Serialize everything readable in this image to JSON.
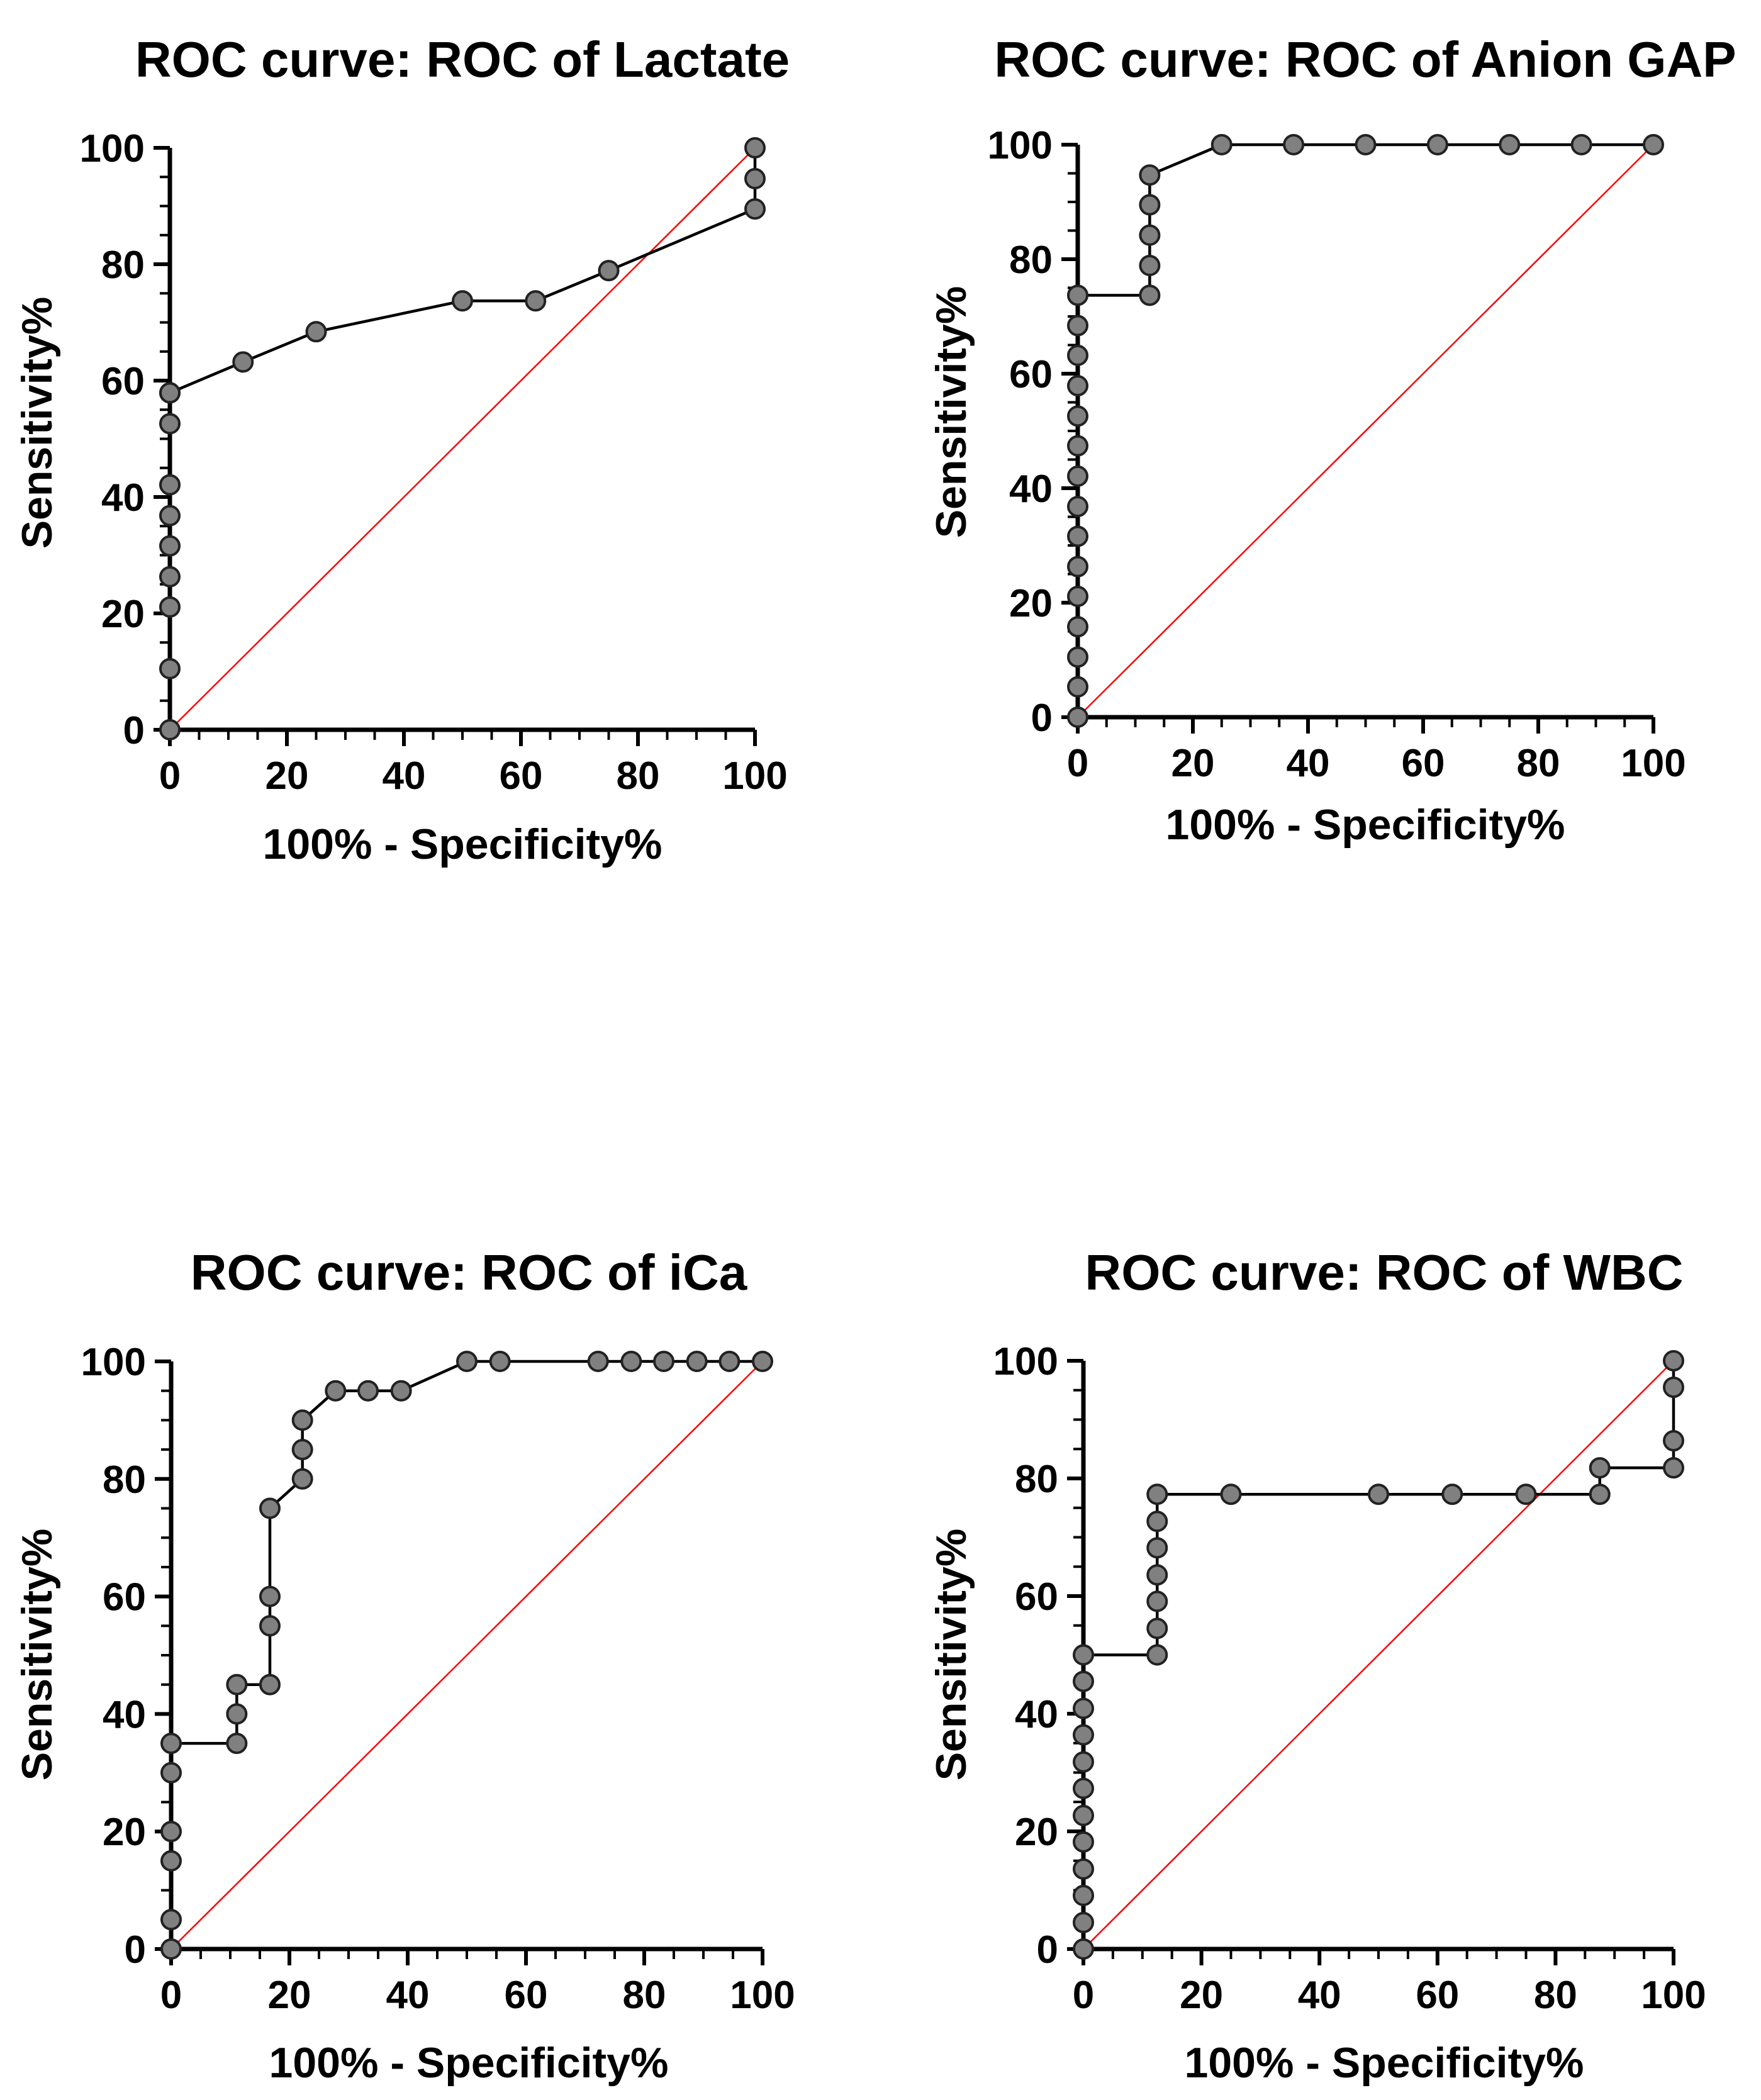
{
  "chart_data": [
    {
      "type": "line",
      "title": "ROC curve: ROC of Lactate",
      "xlabel": "100% - Specificity%",
      "ylabel": "Sensitivity%",
      "xlim": [
        0,
        100
      ],
      "ylim": [
        0,
        100
      ],
      "xticks": [
        "0",
        "20",
        "40",
        "60",
        "80",
        "100"
      ],
      "yticks": [
        "0",
        "20",
        "40",
        "60",
        "80",
        "100"
      ],
      "reference_line": {
        "color": "#ff0000",
        "from": [
          0,
          0
        ],
        "to": [
          100,
          100
        ]
      },
      "marker_color": "#808080",
      "line_color": "#000000",
      "x": [
        0,
        0,
        0,
        0,
        0,
        0,
        0,
        0,
        0,
        0,
        12.5,
        25,
        50,
        62.5,
        75,
        100,
        100,
        100
      ],
      "y": [
        0,
        10.5,
        21.1,
        26.3,
        31.6,
        36.8,
        42.1,
        52.6,
        57.9,
        57.9,
        63.2,
        68.4,
        73.7,
        73.7,
        78.9,
        89.5,
        94.7,
        100
      ]
    },
    {
      "type": "line",
      "title": "ROC curve: ROC of Anion GAP",
      "xlabel": "100% - Specificity%",
      "ylabel": "Sensitivity%",
      "xlim": [
        0,
        100
      ],
      "ylim": [
        0,
        100
      ],
      "xticks": [
        "0",
        "20",
        "40",
        "60",
        "80",
        "100"
      ],
      "yticks": [
        "0",
        "20",
        "40",
        "60",
        "80",
        "100"
      ],
      "reference_line": {
        "color": "#ff0000",
        "from": [
          0,
          0
        ],
        "to": [
          100,
          100
        ]
      },
      "marker_color": "#808080",
      "line_color": "#000000",
      "x": [
        0,
        0,
        0,
        0,
        0,
        0,
        0,
        0,
        0,
        0,
        0,
        0,
        0,
        0,
        0,
        12.5,
        12.5,
        12.5,
        12.5,
        12.5,
        25,
        37.5,
        50,
        62.5,
        75,
        87.5,
        100
      ],
      "y": [
        0,
        5.3,
        10.5,
        15.8,
        21.1,
        26.3,
        31.6,
        36.8,
        42.1,
        47.4,
        52.6,
        57.9,
        63.2,
        68.4,
        73.7,
        73.7,
        78.9,
        84.2,
        89.5,
        94.7,
        100,
        100,
        100,
        100,
        100,
        100,
        100
      ]
    },
    {
      "type": "line",
      "title": "ROC curve: ROC of iCa",
      "xlabel": "100% - Specificity%",
      "ylabel": "Sensitivity%",
      "xlim": [
        0,
        100
      ],
      "ylim": [
        0,
        100
      ],
      "xticks": [
        "0",
        "20",
        "40",
        "60",
        "80",
        "100"
      ],
      "yticks": [
        "0",
        "20",
        "40",
        "60",
        "80",
        "100"
      ],
      "reference_line": {
        "color": "#ff0000",
        "from": [
          0,
          0
        ],
        "to": [
          100,
          100
        ]
      },
      "marker_color": "#808080",
      "line_color": "#000000",
      "x": [
        0,
        0,
        0,
        0,
        0,
        0,
        11.1,
        11.1,
        11.1,
        16.7,
        16.7,
        16.7,
        16.7,
        22.2,
        22.2,
        22.2,
        27.8,
        33.3,
        38.9,
        50,
        55.6,
        72.2,
        77.8,
        83.3,
        88.9,
        94.4,
        100
      ],
      "y": [
        0,
        5,
        15,
        20,
        30,
        35,
        35,
        40,
        45,
        45,
        55,
        60,
        75,
        80,
        85,
        90,
        95,
        95,
        95,
        100,
        100,
        100,
        100,
        100,
        100,
        100,
        100
      ]
    },
    {
      "type": "line",
      "title": "ROC curve: ROC of WBC",
      "xlabel": "100% - Specificity%",
      "ylabel": "Sensitivity%",
      "xlim": [
        0,
        100
      ],
      "ylim": [
        0,
        100
      ],
      "xticks": [
        "0",
        "20",
        "40",
        "60",
        "80",
        "100"
      ],
      "yticks": [
        "0",
        "20",
        "40",
        "60",
        "80",
        "100"
      ],
      "reference_line": {
        "color": "#ff0000",
        "from": [
          0,
          0
        ],
        "to": [
          100,
          100
        ]
      },
      "marker_color": "#808080",
      "line_color": "#000000",
      "x": [
        0,
        0,
        0,
        0,
        0,
        0,
        0,
        0,
        0,
        0,
        0,
        0,
        12.5,
        12.5,
        12.5,
        12.5,
        12.5,
        12.5,
        12.5,
        25,
        50,
        62.5,
        75,
        87.5,
        87.5,
        100,
        100,
        100,
        100
      ],
      "y": [
        0,
        4.5,
        9.1,
        13.6,
        18.2,
        22.7,
        27.3,
        31.8,
        36.4,
        40.9,
        45.5,
        50,
        50,
        54.5,
        59.1,
        63.6,
        68.2,
        72.7,
        77.3,
        77.3,
        77.3,
        77.3,
        77.3,
        77.3,
        81.8,
        81.8,
        86.4,
        95.5,
        100
      ]
    }
  ]
}
